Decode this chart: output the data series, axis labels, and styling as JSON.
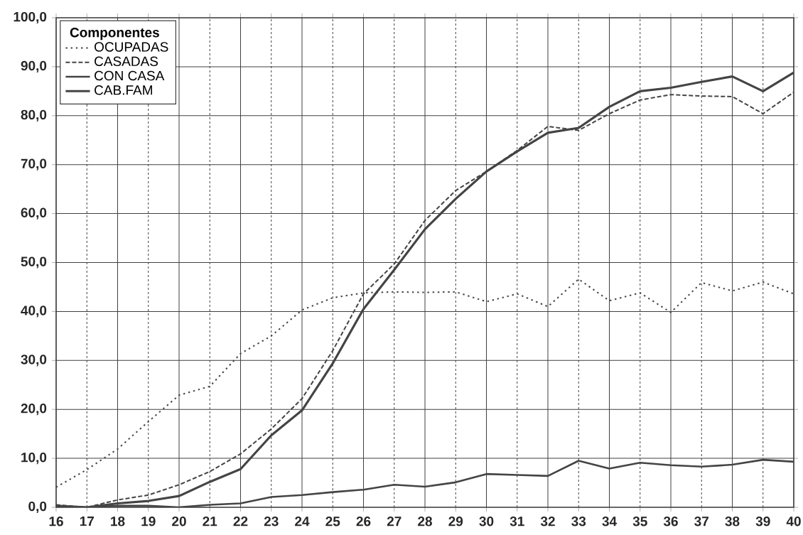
{
  "chart_data": {
    "type": "line",
    "legend_title": "Componentes",
    "legend": "top left",
    "grid": true,
    "marker": "none",
    "x": [
      16,
      17,
      18,
      19,
      20,
      21,
      22,
      23,
      24,
      25,
      26,
      27,
      28,
      29,
      30,
      31,
      32,
      33,
      34,
      35,
      36,
      37,
      38,
      39,
      40
    ],
    "xlim": [
      16,
      40
    ],
    "xticks": [
      16,
      17,
      18,
      19,
      20,
      21,
      22,
      23,
      24,
      25,
      26,
      27,
      28,
      29,
      30,
      31,
      32,
      33,
      34,
      35,
      36,
      37,
      38,
      39,
      40
    ],
    "ylim": [
      0,
      100
    ],
    "yticks": [
      {
        "value": 0,
        "label": "0,0"
      },
      {
        "value": 10,
        "label": "10,0"
      },
      {
        "value": 20,
        "label": "20,0"
      },
      {
        "value": 30,
        "label": "30,0"
      },
      {
        "value": 40,
        "label": "40,0"
      },
      {
        "value": 50,
        "label": "50,0"
      },
      {
        "value": 60,
        "label": "60,0"
      },
      {
        "value": 70,
        "label": "70,0"
      },
      {
        "value": 80,
        "label": "80,0"
      },
      {
        "value": 90,
        "label": "90,0"
      },
      {
        "value": 100,
        "label": "100,0"
      }
    ],
    "series": [
      {
        "name": "OCUPADAS",
        "color": "#444444",
        "line_style": "dotted",
        "values": [
          4.1,
          7.7,
          11.9,
          17.5,
          22.9,
          24.7,
          31.4,
          35,
          40.3,
          42.8,
          43.8,
          44,
          43.9,
          44,
          42,
          43.6,
          41,
          46.6,
          42.2,
          43.8,
          39.8,
          45.9,
          44.2,
          46,
          43.6
        ]
      },
      {
        "name": "CASADAS",
        "color": "#444444",
        "line_style": "dashed",
        "values": [
          0.5,
          0,
          1.5,
          2.5,
          4.6,
          7.3,
          10.9,
          16,
          22.2,
          32,
          43.6,
          49.7,
          58.6,
          64.7,
          68.6,
          72.9,
          77.8,
          77,
          80.4,
          83.2,
          84.3,
          84,
          83.9,
          80.4,
          84.8
        ]
      },
      {
        "name": "CON CASA",
        "color": "#444444",
        "line_style": "solid",
        "values": [
          0,
          0,
          0.3,
          0.3,
          0,
          0.5,
          0.8,
          2.1,
          2.5,
          3.1,
          3.6,
          4.6,
          4.2,
          5.1,
          6.8,
          6.6,
          6.4,
          9.5,
          7.9,
          9.1,
          8.6,
          8.3,
          8.7,
          9.7,
          9.3
        ]
      },
      {
        "name": "CAB.FAM",
        "color": "#444444",
        "line_style": "solid",
        "values": [
          0.3,
          0,
          0.8,
          1.3,
          2.3,
          5.2,
          7.8,
          14.7,
          19.8,
          29.4,
          40.5,
          48.5,
          56.8,
          63,
          68.6,
          72.7,
          76.5,
          77.5,
          81.8,
          85,
          85.7,
          86.9,
          88,
          85,
          88.8
        ]
      }
    ]
  }
}
